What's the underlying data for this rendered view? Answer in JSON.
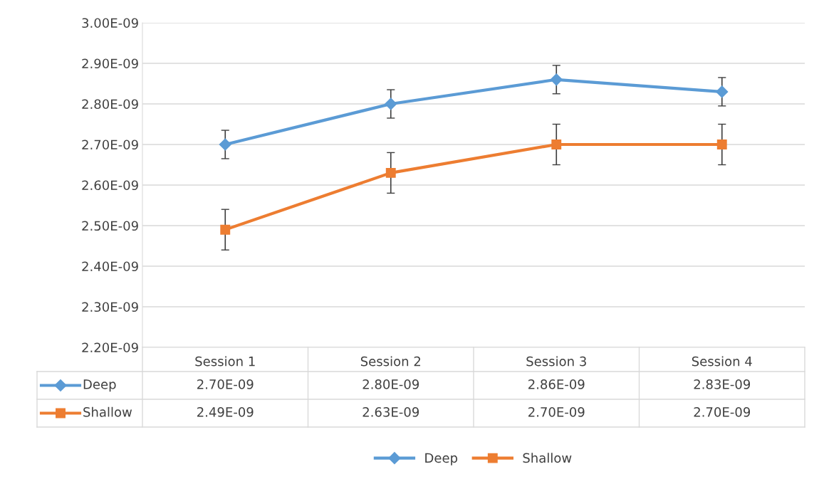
{
  "chart_data": {
    "type": "line",
    "categories": [
      "Session 1",
      "Session 2",
      "Session 3",
      "Session 4"
    ],
    "series": [
      {
        "name": "Deep",
        "color": "#5b9bd5",
        "values": [
          2.7e-09,
          2.8e-09,
          2.86e-09,
          2.83e-09
        ],
        "errors": [
          3.5e-11,
          3.5e-11,
          3.5e-11,
          3.5e-11
        ],
        "value_labels": [
          "2.70E-09",
          "2.80E-09",
          "2.86E-09",
          "2.83E-09"
        ],
        "marker": "diamond"
      },
      {
        "name": "Shallow",
        "color": "#ed7d31",
        "values": [
          2.49e-09,
          2.63e-09,
          2.7e-09,
          2.7e-09
        ],
        "errors": [
          5e-11,
          5e-11,
          5e-11,
          5e-11
        ],
        "value_labels": [
          "2.49E-09",
          "2.63E-09",
          "2.70E-09",
          "2.70E-09"
        ],
        "marker": "square"
      }
    ],
    "ylim": [
      2.2e-09,
      3e-09
    ],
    "yticks": [
      {
        "value": 2.2e-09,
        "label": "2.20E-09"
      },
      {
        "value": 2.3e-09,
        "label": "2.30E-09"
      },
      {
        "value": 2.4e-09,
        "label": "2.40E-09"
      },
      {
        "value": 2.5e-09,
        "label": "2.50E-09"
      },
      {
        "value": 2.6e-09,
        "label": "2.60E-09"
      },
      {
        "value": 2.7e-09,
        "label": "2.70E-09"
      },
      {
        "value": 2.8e-09,
        "label": "2.80E-09"
      },
      {
        "value": 2.9e-09,
        "label": "2.90E-09"
      },
      {
        "value": 3e-09,
        "label": "3.00E-09"
      }
    ],
    "grid": "y",
    "legend": "bottom",
    "line_style": "solid"
  }
}
